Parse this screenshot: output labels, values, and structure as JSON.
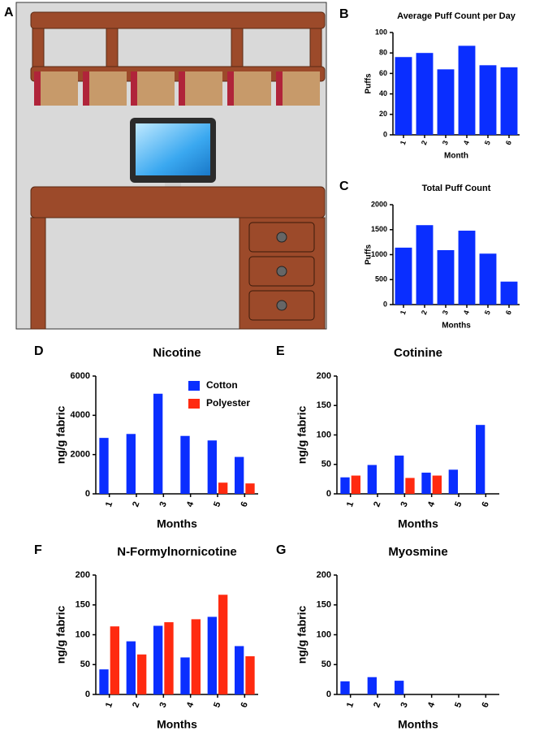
{
  "illustration": {
    "panel": "A"
  },
  "chart_data": [
    {
      "type": "bar",
      "panel": "B",
      "title": "Average Puff Count per Day",
      "x_label": "Month",
      "y_label": "Puffs",
      "categories": [
        "1",
        "2",
        "3",
        "4",
        "5",
        "6"
      ],
      "values": [
        76,
        80,
        64,
        87,
        68,
        66
      ],
      "color": "#0a2eff",
      "ylim": [
        0,
        100
      ],
      "yticks": [
        0,
        20,
        40,
        60,
        80,
        100
      ],
      "grid": false,
      "legend": false
    },
    {
      "type": "bar",
      "panel": "C",
      "title": "Total Puff Count",
      "x_label": "Months",
      "y_label": "Puffs",
      "categories": [
        "1",
        "2",
        "3",
        "4",
        "5",
        "6"
      ],
      "values": [
        1140,
        1590,
        1090,
        1480,
        1020,
        460
      ],
      "color": "#0a2eff",
      "ylim": [
        0,
        2000
      ],
      "yticks": [
        0,
        500,
        1000,
        1500,
        2000
      ],
      "grid": false,
      "legend": false
    },
    {
      "type": "bar",
      "panel": "D",
      "title": "Nicotine",
      "x_label": "Months",
      "y_label": "ng/g fabric",
      "categories": [
        "1",
        "2",
        "3",
        "4",
        "5",
        "6"
      ],
      "series": [
        {
          "name": "Cotton",
          "color": "#0a2eff",
          "values": [
            2850,
            3050,
            5100,
            2950,
            2720,
            1880
          ]
        },
        {
          "name": "Polyester",
          "color": "#ff2a10",
          "values": [
            null,
            null,
            null,
            null,
            570,
            530
          ]
        }
      ],
      "ylim": [
        0,
        6000
      ],
      "yticks": [
        0,
        2000,
        4000,
        6000
      ],
      "grid": false,
      "legend": true,
      "legend_position": "top-right"
    },
    {
      "type": "bar",
      "panel": "E",
      "title": "Cotinine",
      "x_label": "Months",
      "y_label": "ng/g fabric",
      "categories": [
        "1",
        "2",
        "3",
        "4",
        "5",
        "6"
      ],
      "series": [
        {
          "color": "#0a2eff",
          "values": [
            28,
            49,
            65,
            36,
            41,
            117
          ]
        },
        {
          "color": "#ff2a10",
          "values": [
            31,
            null,
            27,
            31,
            null,
            null
          ]
        }
      ],
      "ylim": [
        0,
        200
      ],
      "yticks": [
        0,
        50,
        100,
        150,
        200
      ],
      "grid": false,
      "legend": false
    },
    {
      "type": "bar",
      "panel": "F",
      "title": "N-Formylnornicotine",
      "x_label": "Months",
      "y_label": "ng/g fabric",
      "categories": [
        "1",
        "2",
        "3",
        "4",
        "5",
        "6"
      ],
      "series": [
        {
          "color": "#0a2eff",
          "values": [
            42,
            89,
            115,
            62,
            130,
            81
          ]
        },
        {
          "color": "#ff2a10",
          "values": [
            114,
            67,
            121,
            126,
            167,
            64
          ]
        }
      ],
      "ylim": [
        0,
        200
      ],
      "yticks": [
        0,
        50,
        100,
        150,
        200
      ],
      "grid": false,
      "legend": false
    },
    {
      "type": "bar",
      "panel": "G",
      "title": "Myosmine",
      "x_label": "Months",
      "y_label": "ng/g fabric",
      "categories": [
        "1",
        "2",
        "3",
        "4",
        "5",
        "6"
      ],
      "series": [
        {
          "color": "#0a2eff",
          "values": [
            22,
            29,
            23,
            null,
            null,
            null
          ]
        },
        {
          "color": "#ff2a10",
          "values": [
            null,
            null,
            null,
            null,
            null,
            null
          ]
        }
      ],
      "ylim": [
        0,
        200
      ],
      "yticks": [
        0,
        50,
        100,
        150,
        200
      ],
      "grid": false,
      "legend": false
    }
  ]
}
